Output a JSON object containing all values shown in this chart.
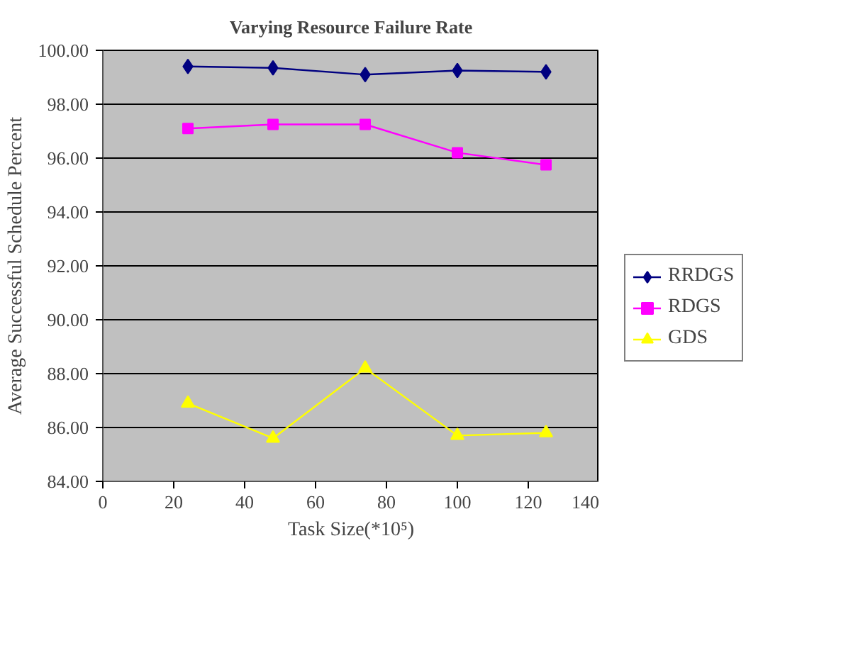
{
  "chart_data": {
    "type": "line",
    "title": "Varying Resource Failure Rate",
    "xlabel": "Task Size(*10⁵)",
    "ylabel": "Average Successful Schedule Percent",
    "x": [
      24,
      48,
      74,
      100,
      125
    ],
    "series": [
      {
        "name": "RRDGS",
        "color": "#000080",
        "marker": "diamond",
        "values": [
          99.4,
          99.35,
          99.1,
          99.25,
          99.2
        ]
      },
      {
        "name": "RDGS",
        "color": "#ff00ff",
        "marker": "square",
        "values": [
          97.1,
          97.25,
          97.25,
          96.2,
          95.75
        ]
      },
      {
        "name": "GDS",
        "color": "#ffff00",
        "marker": "triangle",
        "values": [
          86.9,
          85.6,
          88.2,
          85.7,
          85.8
        ]
      }
    ],
    "xlim": [
      0,
      140
    ],
    "xticks": [
      0,
      20,
      40,
      60,
      80,
      100,
      120,
      140
    ],
    "ylim": [
      84,
      100
    ],
    "yticks": [
      {
        "value": 84,
        "label": "84.00"
      },
      {
        "value": 86,
        "label": "86.00"
      },
      {
        "value": 88,
        "label": "88.00"
      },
      {
        "value": 90,
        "label": "90.00"
      },
      {
        "value": 92,
        "label": "92.00"
      },
      {
        "value": 94,
        "label": "94.00"
      },
      {
        "value": 96,
        "label": "96.00"
      },
      {
        "value": 98,
        "label": "98.00"
      },
      {
        "value": 100,
        "label": "100.00"
      }
    ],
    "grid": "y",
    "legend": "right",
    "line_style": "solid"
  }
}
